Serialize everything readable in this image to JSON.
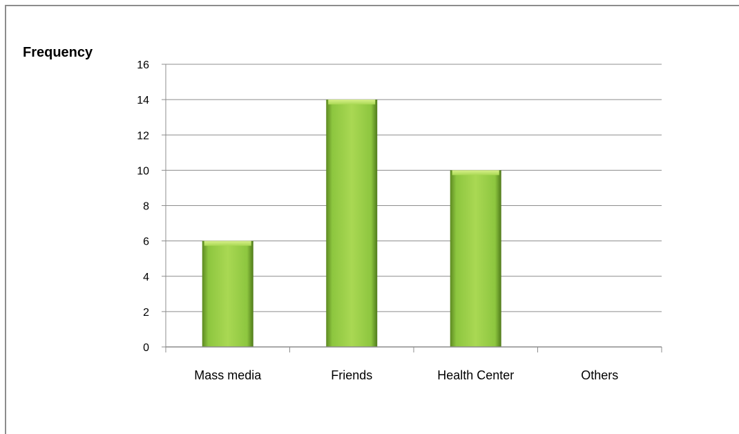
{
  "chart_data": {
    "type": "bar",
    "title": "",
    "xlabel": "",
    "ylabel": "Frequency",
    "categories": [
      "Mass media",
      "Friends",
      "Health Center",
      "Others"
    ],
    "values": [
      6,
      14,
      10,
      0
    ],
    "ylim": [
      0,
      16
    ],
    "yticks": [
      0,
      2,
      4,
      6,
      8,
      10,
      12,
      14,
      16
    ],
    "grid": true,
    "legend": "none",
    "colors": {
      "bar": "#8dc63f",
      "bar_light": "#b5e061",
      "bar_dark": "#5e8a22",
      "grid": "#8c8c8c"
    }
  }
}
